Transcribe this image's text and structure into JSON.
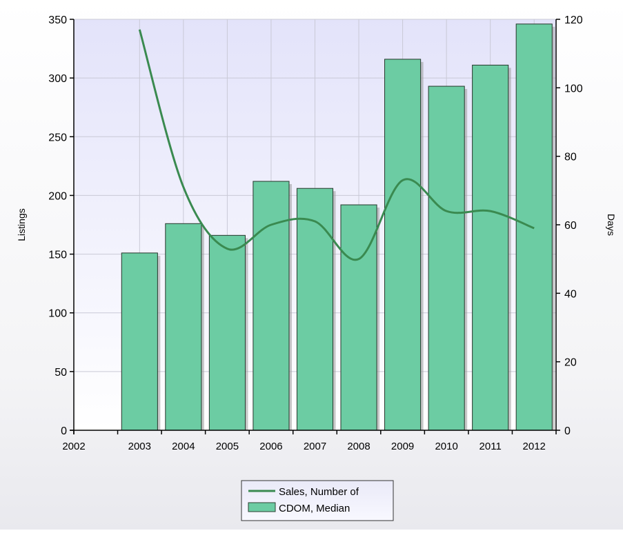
{
  "chart_data": {
    "type": "bar",
    "x_axis": {
      "ticks": [
        "2002",
        "2003",
        "2004",
        "2005",
        "2006",
        "2007",
        "2008",
        "2009",
        "2010",
        "2011",
        "2012"
      ]
    },
    "y_left": {
      "label": "Listings",
      "ylim": [
        0,
        350
      ],
      "ticks": [
        0,
        50,
        100,
        150,
        200,
        250,
        300,
        350
      ]
    },
    "y_right": {
      "label": "Days",
      "ylim": [
        0,
        120
      ],
      "ticks": [
        0,
        20,
        40,
        60,
        80,
        100,
        120
      ]
    },
    "categories": [
      "2003",
      "2004",
      "2005",
      "2006",
      "2007",
      "2008",
      "2009",
      "2010",
      "2011",
      "2012"
    ],
    "series": [
      {
        "name": "CDOM, Median",
        "type": "bar",
        "axis": "left",
        "color": "#6ccca3",
        "values": [
          151,
          176,
          166,
          212,
          206,
          192,
          316,
          293,
          311,
          346
        ]
      },
      {
        "name": "Sales, Number of",
        "type": "line",
        "axis": "right",
        "color": "#3a8a50",
        "values": [
          117,
          71,
          53,
          60,
          61,
          50,
          73,
          64,
          64,
          59
        ]
      }
    ],
    "grid": true,
    "legend_position": "bottom-center"
  }
}
